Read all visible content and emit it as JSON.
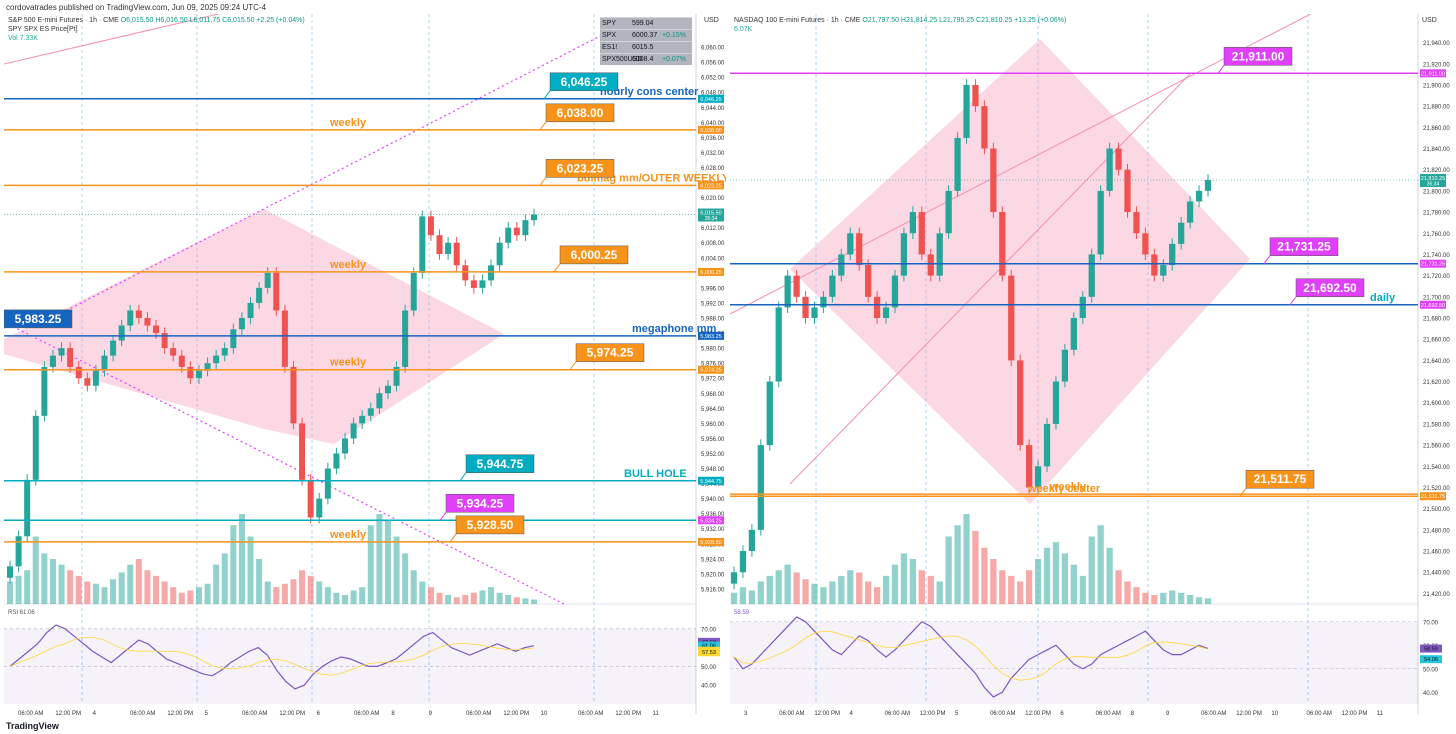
{
  "published": "cordovatrades published on TradingView.com, Jun 09, 2025 09:24 UTC-4",
  "brand": "TradingView",
  "colors": {
    "up": "#26a69a",
    "down": "#ef5350",
    "weekly": "#f7931a",
    "blue": "#1565c0",
    "cyan": "#00acc1",
    "magenta": "#e040fb",
    "pink": "#f8bbd0",
    "rsi": "#7e57c2"
  },
  "chart_data": [
    {
      "type": "candlestick",
      "title": "S&P 500 E-mini Futures · 1h · CME",
      "ohlc_header": "O6,015.50 H6,016.50 L6,011.75 C6,015.50 +2.25 (+0.04%)",
      "subtitle": "SPY SPX ES Price[Pt]",
      "volume_label": "Vol 7.33K",
      "currency": "USD",
      "ylim": [
        5912,
        6064
      ],
      "y_ticks": [
        "6,060.00",
        "6,056.00",
        "6,052.00",
        "6,048.00",
        "6,044.00",
        "6,040.00",
        "6,036.00",
        "6,032.00",
        "6,028.00",
        "6,024.00",
        "6,020.00",
        "6,016.00",
        "6,012.00",
        "6,008.00",
        "6,004.00",
        "6,000.00",
        "5,996.00",
        "5,992.00",
        "5,988.00",
        "5,984.00",
        "5,980.00",
        "5,976.00",
        "5,972.00",
        "5,968.00",
        "5,964.00",
        "5,960.00",
        "5,956.00",
        "5,952.00",
        "5,948.00",
        "5,944.00",
        "5,940.00",
        "5,936.00",
        "5,932.00",
        "5,928.00",
        "5,924.00",
        "5,920.00",
        "5,916.00"
      ],
      "x_ticks": [
        "06:00 AM",
        "12:00 PM",
        "4",
        "06:00 AM",
        "12:00 PM",
        "5",
        "06:00 AM",
        "12:00 PM",
        "6",
        "06:00 AM",
        "8",
        "9",
        "06:00 AM",
        "12:00 PM",
        "10",
        "06:00 AM",
        "12:00 PM",
        "11"
      ],
      "price_badge": {
        "value": "6,015.50",
        "countdown": "35:34"
      },
      "levels": [
        {
          "price": 6046.25,
          "label": "6,046.25",
          "color": "#1565c0",
          "badge_bg": "#00acc1",
          "note": "hourly cons center",
          "note_color": "#1565c0"
        },
        {
          "price": 6038.0,
          "label": "6,038.00",
          "color": "#f7931a",
          "badge_bg": "#f7931a",
          "note": "weekly",
          "note_color": "#f7931a"
        },
        {
          "price": 6023.25,
          "label": "6,023.25",
          "color": "#f7931a",
          "badge_bg": "#f7931a",
          "note": "bullflag mm/OUTER WEEKLY",
          "note_color": "#f7931a"
        },
        {
          "price": 6000.25,
          "label": "6,000.25",
          "color": "#f7931a",
          "badge_bg": "#f7931a",
          "note": "weekly",
          "note_color": "#f7931a"
        },
        {
          "price": 5983.25,
          "label": "5,983.25",
          "color": "#1565c0",
          "badge_bg": "#1565c0",
          "note": "megaphone mm",
          "note_color": "#1565c0"
        },
        {
          "price": 5974.25,
          "label": "5,974.25",
          "color": "#f7931a",
          "badge_bg": "#f7931a",
          "note": "weekly",
          "note_color": "#f7931a"
        },
        {
          "price": 5944.75,
          "label": "5,944.75",
          "color": "#00acc1",
          "badge_bg": "#00acc1",
          "note": "BULL HOLE",
          "note_color": "#00acc1"
        },
        {
          "price": 5934.25,
          "label": "5,934.25",
          "color": "#00acc1",
          "badge_bg": "#e040fb",
          "note": "",
          "note_color": "#00acc1"
        },
        {
          "price": 5928.5,
          "label": "5,928.50",
          "color": "#f7931a",
          "badge_bg": "#f7931a",
          "note": "weekly",
          "note_color": "#f7931a"
        }
      ],
      "axis_badges": [
        "6,046.25",
        "6,038.00",
        "6,023.25",
        "6,000.25",
        "5,983.25",
        "5,974.25",
        "5,944.75",
        "5,934.25",
        "5,928.50",
        "5,913.75",
        "7.33K"
      ],
      "watchlist": [
        {
          "symbol": "SPY",
          "price": "599.04",
          "change": ""
        },
        {
          "symbol": "SPX",
          "price": "6000.37",
          "change": "+0.15%"
        },
        {
          "symbol": "ES1!",
          "price": "6015.5",
          "change": ""
        },
        {
          "symbol": "SPX500USD",
          "price": "6008.4",
          "change": "+0.07%"
        }
      ],
      "close_series": [
        5922,
        5930,
        5945,
        5962,
        5975,
        5978,
        5980,
        5975,
        5972,
        5970,
        5974,
        5978,
        5982,
        5986,
        5990,
        5988,
        5986,
        5984,
        5980,
        5978,
        5975,
        5972,
        5974,
        5976,
        5978,
        5980,
        5985,
        5988,
        5992,
        5996,
        6000,
        5990,
        5975,
        5960,
        5945,
        5935,
        5940,
        5948,
        5952,
        5956,
        5960,
        5962,
        5964,
        5968,
        5970,
        5975,
        5990,
        6000,
        6015,
        6010,
        6005,
        6008,
        6002,
        5998,
        5996,
        5998,
        6002,
        6008,
        6012,
        6010,
        6014,
        6015.5
      ],
      "volume_series": [
        20,
        25,
        30,
        60,
        45,
        40,
        35,
        30,
        25,
        20,
        18,
        15,
        22,
        28,
        35,
        40,
        30,
        25,
        20,
        15,
        10,
        12,
        15,
        18,
        35,
        45,
        70,
        80,
        60,
        40,
        20,
        15,
        18,
        22,
        30,
        25,
        20,
        15,
        10,
        8,
        12,
        15,
        70,
        80,
        75,
        60,
        45,
        30,
        20,
        15,
        10,
        8,
        6,
        8,
        10,
        12,
        15,
        10,
        8,
        6,
        5,
        4
      ],
      "rsi": {
        "label": "RSI",
        "value": "61.06",
        "ylim": [
          30,
          80
        ],
        "ticks": [
          "70.00",
          "60.00",
          "50.00",
          "40.00"
        ],
        "badges": [
          "63.07",
          "61.06",
          "58.33",
          "57.53"
        ],
        "series": [
          50,
          54,
          58,
          62,
          68,
          72,
          70,
          66,
          62,
          58,
          55,
          52,
          56,
          60,
          64,
          62,
          58,
          54,
          52,
          50,
          48,
          46,
          45,
          48,
          52,
          55,
          58,
          60,
          56,
          48,
          42,
          38,
          40,
          46,
          50,
          53,
          55,
          54,
          52,
          50,
          50,
          52,
          54,
          58,
          62,
          66,
          68,
          64,
          60,
          58,
          56,
          58,
          60,
          62,
          60,
          58,
          60,
          61
        ]
      }
    },
    {
      "type": "candlestick",
      "title": "NASDAQ 100 E-mini Futures · 1h · CME",
      "ohlc_header": "O21,797.50 H21,814.25 L21,795.25 C21,810.25 +13.25 (+0.06%)",
      "volume_label": "6.07K",
      "currency": "USD",
      "ylim": [
        21410,
        21950
      ],
      "y_ticks": [
        "21,940.00",
        "21,920.00",
        "21,900.00",
        "21,880.00",
        "21,860.00",
        "21,840.00",
        "21,820.00",
        "21,800.00",
        "21,780.00",
        "21,760.00",
        "21,740.00",
        "21,720.00",
        "21,700.00",
        "21,680.00",
        "21,660.00",
        "21,640.00",
        "21,620.00",
        "21,600.00",
        "21,580.00",
        "21,560.00",
        "21,540.00",
        "21,520.00",
        "21,500.00",
        "21,480.00",
        "21,460.00",
        "21,440.00",
        "21,420.00"
      ],
      "x_ticks": [
        "3",
        "06:00 AM",
        "12:00 PM",
        "4",
        "06:00 AM",
        "12:00 PM",
        "5",
        "06:00 AM",
        "12:00 PM",
        "6",
        "06:00 AM",
        "8",
        "9",
        "06:00 AM",
        "12:00 PM",
        "10",
        "06:00 AM",
        "12:00 PM",
        "11"
      ],
      "price_badge": {
        "value": "21,810.25",
        "countdown": "35:34"
      },
      "levels": [
        {
          "price": 21911.0,
          "label": "21,911.00",
          "color": "#e040fb",
          "badge_bg": "#e040fb",
          "note": "",
          "note_color": "#e040fb"
        },
        {
          "price": 21731.25,
          "label": "21,731.25",
          "color": "#1565c0",
          "badge_bg": "#e040fb",
          "note": "",
          "note_color": "#1565c0"
        },
        {
          "price": 21692.5,
          "label": "21,692.50",
          "color": "#1565c0",
          "badge_bg": "#e040fb",
          "note": "daily",
          "note_color": "#00acc1"
        },
        {
          "price": 21511.75,
          "label": "21,511.75",
          "color": "#f7931a",
          "badge_bg": "#f7931a",
          "note": "weekly center",
          "note_color": "#f7931a"
        },
        {
          "price": 21513.75,
          "label": "",
          "color": "#f7931a",
          "badge_bg": "#f7931a",
          "note": "weekly",
          "note_color": "#f7931a"
        }
      ],
      "axis_badges": [
        "21,731.25",
        "21,698.00",
        "21,692.50",
        "21,666.50",
        "21,665.00",
        "21,660.00",
        "21,630.25",
        "21,571.00",
        "21,513.75",
        "21,511.75",
        "21,500.75",
        "6.07K"
      ],
      "close_series": [
        21440,
        21460,
        21480,
        21560,
        21620,
        21690,
        21720,
        21700,
        21680,
        21690,
        21700,
        21720,
        21740,
        21760,
        21730,
        21700,
        21680,
        21690,
        21720,
        21760,
        21780,
        21740,
        21720,
        21760,
        21800,
        21850,
        21900,
        21880,
        21840,
        21780,
        21720,
        21640,
        21560,
        21520,
        21540,
        21580,
        21620,
        21650,
        21680,
        21700,
        21740,
        21800,
        21840,
        21820,
        21780,
        21760,
        21740,
        21720,
        21730,
        21750,
        21770,
        21790,
        21800,
        21810.25
      ],
      "volume_series": [
        10,
        15,
        12,
        20,
        25,
        30,
        35,
        28,
        22,
        18,
        15,
        20,
        25,
        30,
        28,
        20,
        15,
        25,
        35,
        45,
        40,
        30,
        25,
        20,
        60,
        70,
        80,
        65,
        50,
        40,
        30,
        25,
        20,
        30,
        40,
        50,
        55,
        45,
        35,
        25,
        60,
        70,
        50,
        30,
        20,
        15,
        10,
        8,
        10,
        12,
        10,
        8,
        6,
        5
      ],
      "rsi": {
        "value": "58.59",
        "ylim": [
          35,
          75
        ],
        "ticks": [
          "70.00",
          "60.00",
          "50.00",
          "40.00"
        ],
        "badges": [
          "58.59",
          "54.06"
        ],
        "series": [
          55,
          50,
          52,
          56,
          60,
          64,
          68,
          72,
          70,
          66,
          62,
          58,
          56,
          60,
          64,
          62,
          58,
          55,
          58,
          62,
          66,
          70,
          68,
          64,
          60,
          56,
          52,
          48,
          42,
          38,
          40,
          46,
          50,
          54,
          56,
          58,
          60,
          56,
          52,
          50,
          52,
          56,
          58,
          60,
          62,
          64,
          66,
          62,
          58,
          56,
          56,
          58,
          60,
          58.59
        ]
      }
    }
  ]
}
